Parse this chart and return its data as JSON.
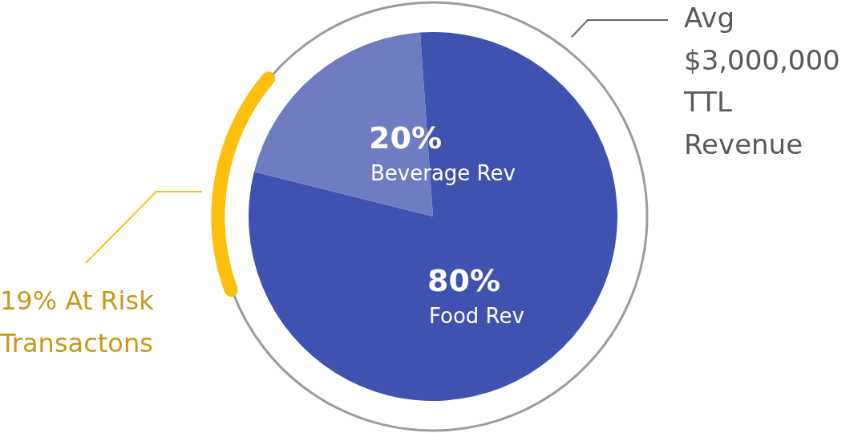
{
  "chart_data": {
    "type": "pie",
    "categories": [
      "Beverage Rev",
      "Food Rev"
    ],
    "values": [
      20,
      80
    ],
    "colors": [
      "#6f7cc2",
      "#4052b0"
    ],
    "value_labels": [
      "20%",
      "80%"
    ],
    "annotations": [
      "Avg $3,000,000 TTL Revenue",
      "19% At Risk Transactons"
    ],
    "legend": false
  }
}
